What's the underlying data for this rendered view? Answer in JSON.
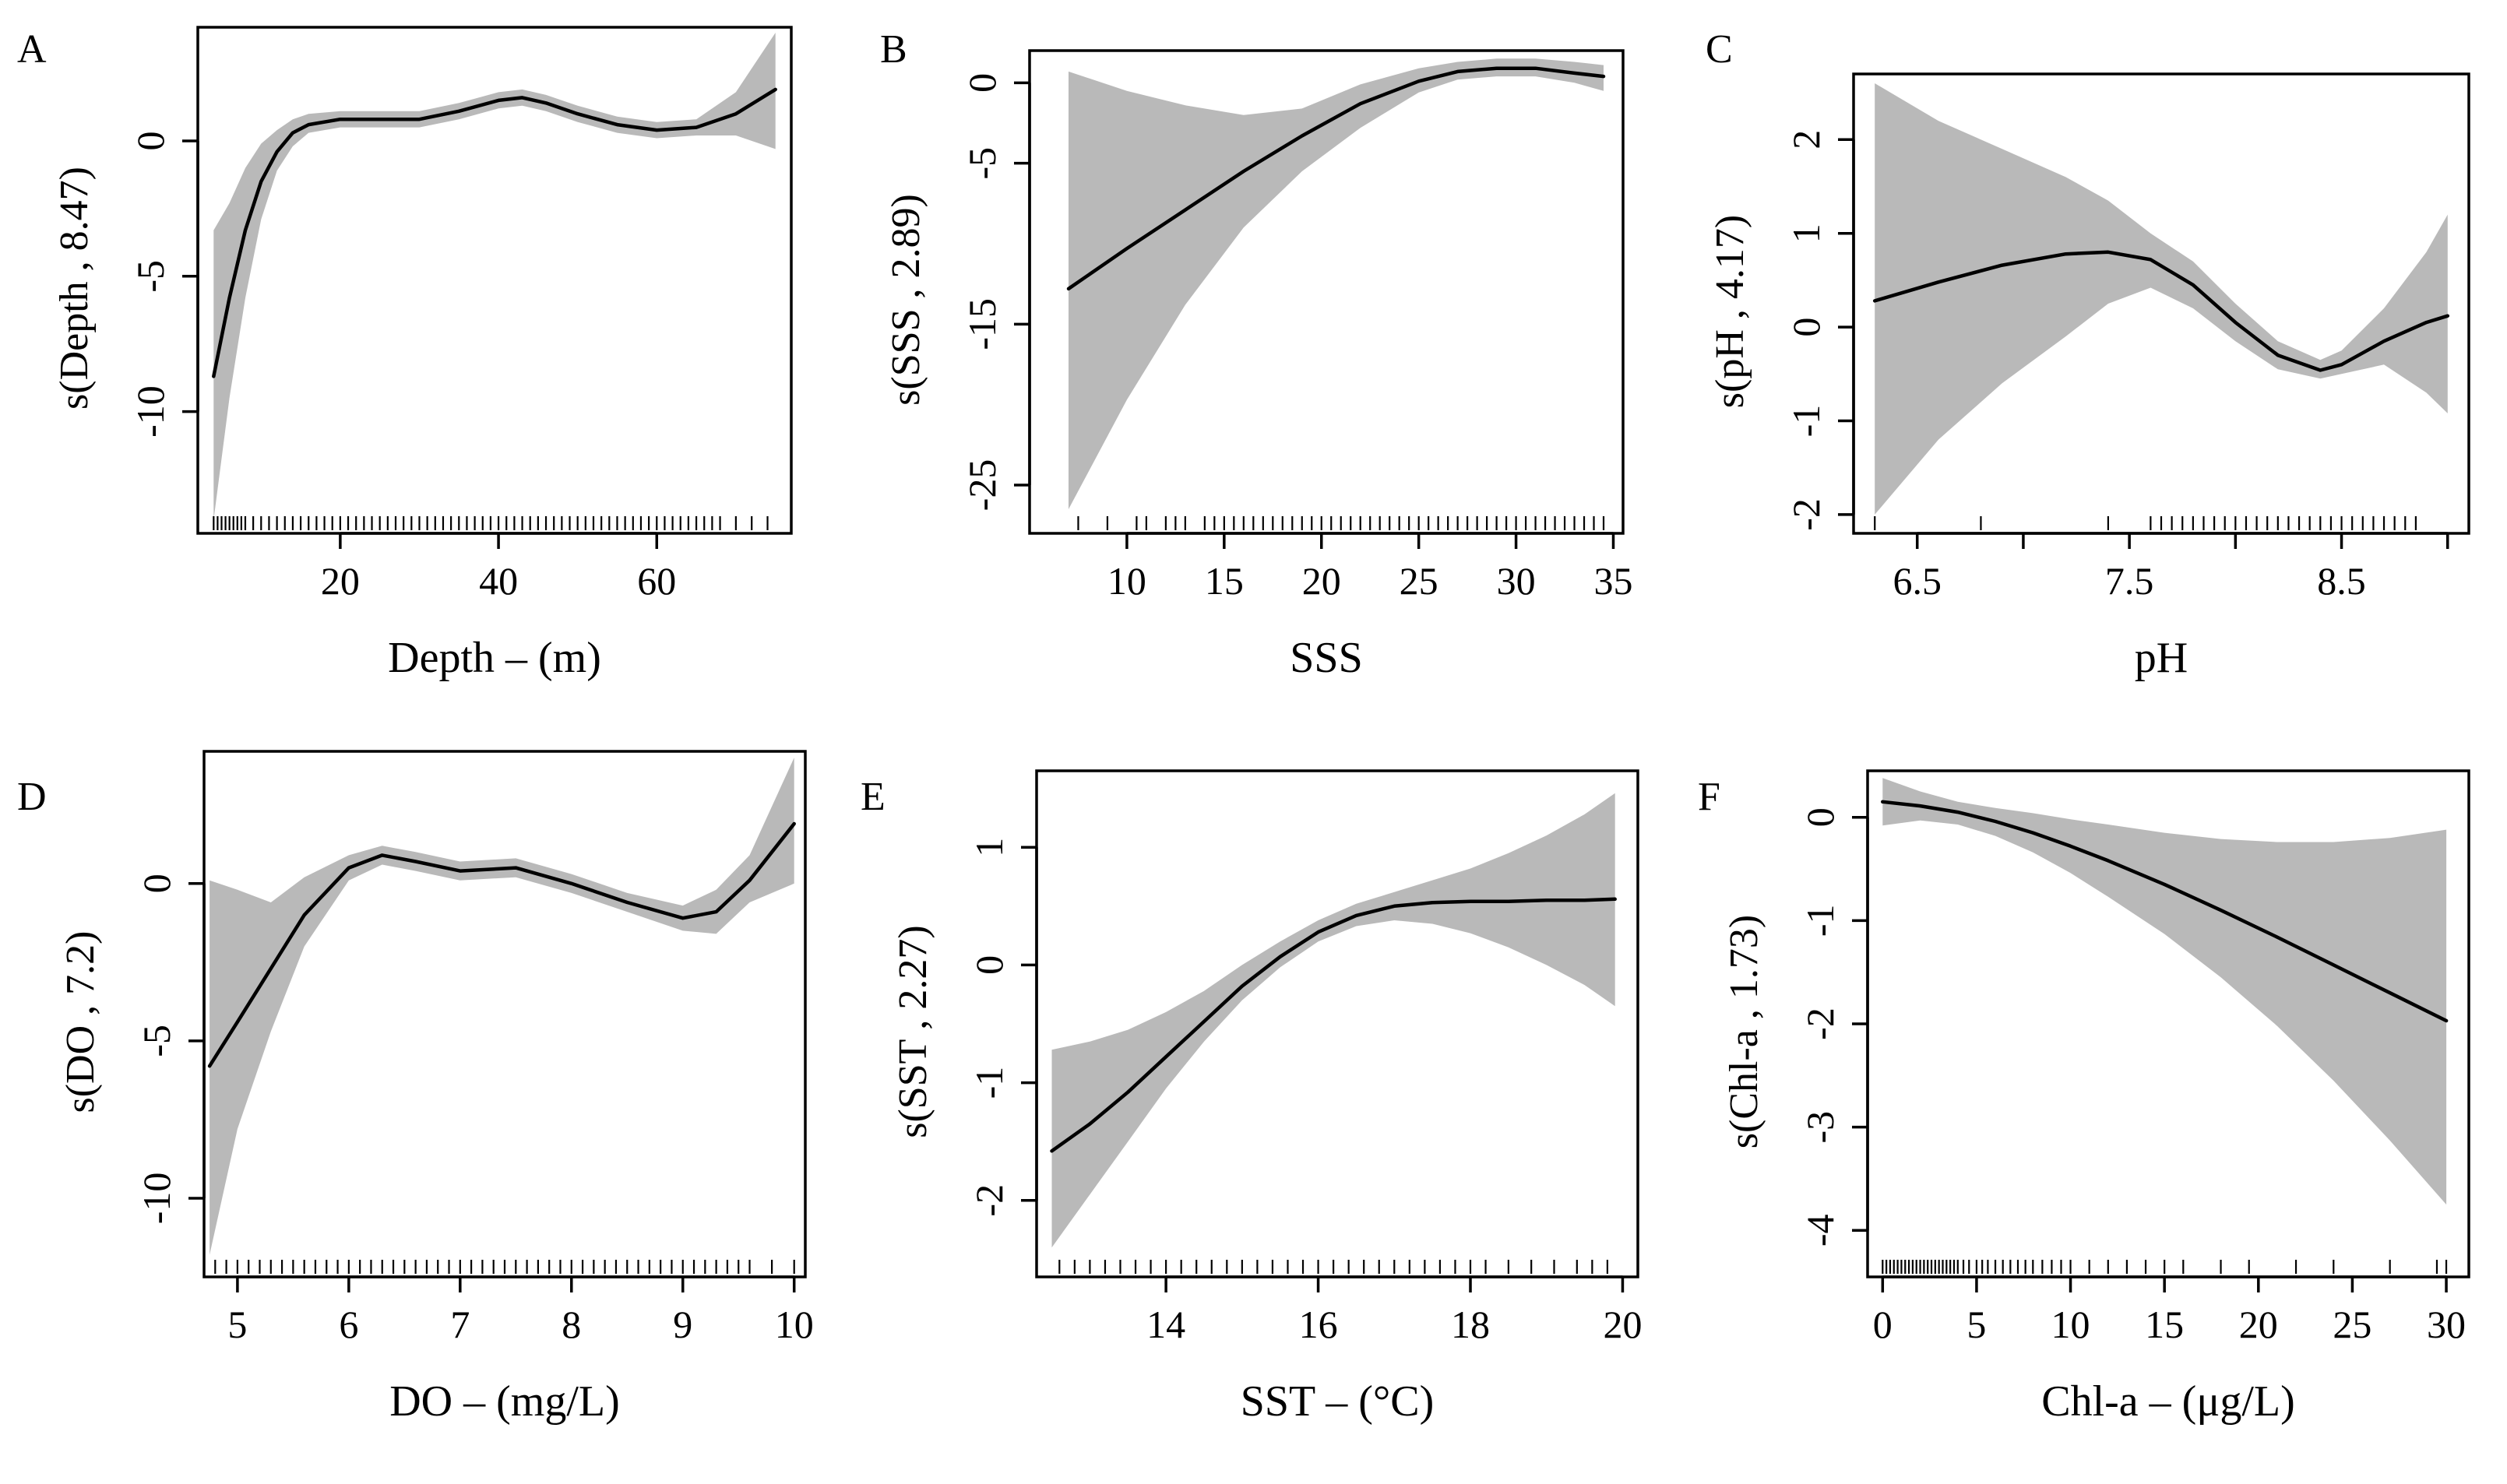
{
  "figure": {
    "colors": {
      "band": "#b9b9b9",
      "line": "#000000",
      "axis": "#000000"
    }
  },
  "chart_data": [
    {
      "id": "A",
      "type": "line",
      "panel_label": "A",
      "xlabel": "Depth – (m)",
      "ylabel": "s(Depth , 8.47)",
      "xlim": [
        2,
        77
      ],
      "ylim": [
        -14.5,
        4.2
      ],
      "xticks": [
        20,
        40,
        60
      ],
      "xtick_labels": [
        "20",
        "40",
        "60"
      ],
      "yticks": [
        -10,
        -5,
        0
      ],
      "ytick_labels": [
        "-10",
        "-5",
        "0"
      ],
      "series": [
        {
          "name": "smooth",
          "x": [
            4,
            6,
            8,
            10,
            12,
            14,
            16,
            20,
            25,
            30,
            35,
            40,
            43,
            46,
            50,
            55,
            60,
            65,
            70,
            75
          ],
          "y": [
            -8.7,
            -5.8,
            -3.3,
            -1.5,
            -0.4,
            0.3,
            0.6,
            0.8,
            0.8,
            0.8,
            1.1,
            1.5,
            1.6,
            1.4,
            1.0,
            0.6,
            0.4,
            0.5,
            1.0,
            1.9
          ],
          "lower": [
            -14,
            -9.5,
            -5.8,
            -2.9,
            -1.1,
            -0.2,
            0.3,
            0.5,
            0.5,
            0.5,
            0.8,
            1.2,
            1.3,
            1.1,
            0.7,
            0.3,
            0.1,
            0.2,
            0.2,
            -0.3
          ],
          "upper": [
            -3.3,
            -2.3,
            -1.0,
            -0.1,
            0.4,
            0.8,
            1.0,
            1.1,
            1.1,
            1.1,
            1.4,
            1.8,
            1.9,
            1.7,
            1.3,
            0.9,
            0.7,
            0.8,
            1.8,
            4.0
          ]
        }
      ],
      "rug": [
        4,
        4.5,
        5,
        5.5,
        6,
        6.5,
        7,
        7.5,
        8,
        9,
        10,
        11,
        12,
        13,
        14,
        15,
        16,
        17,
        18,
        19,
        20,
        21,
        22,
        23,
        24,
        25,
        26,
        27,
        28,
        29,
        30,
        31,
        32,
        33,
        34,
        35,
        36,
        37,
        38,
        39,
        40,
        41,
        42,
        43,
        44,
        45,
        46,
        47,
        48,
        49,
        50,
        51,
        52,
        53,
        54,
        55,
        56,
        57,
        58,
        59,
        60,
        61,
        62,
        63,
        64,
        65,
        66,
        67,
        68,
        70,
        72,
        74
      ]
    },
    {
      "id": "B",
      "type": "line",
      "panel_label": "B",
      "xlabel": "SSS",
      "ylabel": "s(SSS , 2.89)",
      "xlim": [
        5,
        35.5
      ],
      "ylim": [
        -28,
        2
      ],
      "xticks": [
        10,
        15,
        20,
        25,
        30,
        35
      ],
      "xtick_labels": [
        "10",
        "15",
        "20",
        "25",
        "30",
        "35"
      ],
      "yticks": [
        -25,
        -15,
        -5,
        0
      ],
      "ytick_labels": [
        "-25",
        "-15",
        "-5",
        "0"
      ],
      "series": [
        {
          "name": "smooth",
          "x": [
            7,
            10,
            13,
            16,
            19,
            22,
            25,
            27,
            29,
            31,
            33,
            34.5
          ],
          "y": [
            -12.8,
            -10.3,
            -7.9,
            -5.5,
            -3.3,
            -1.3,
            0.1,
            0.7,
            0.9,
            0.9,
            0.6,
            0.4
          ],
          "lower": [
            -26.5,
            -19.7,
            -13.8,
            -9.0,
            -5.5,
            -2.8,
            -0.6,
            0.2,
            0.4,
            0.4,
            0.0,
            -0.5
          ],
          "upper": [
            0.7,
            -0.5,
            -1.4,
            -2.0,
            -1.6,
            -0.1,
            0.9,
            1.3,
            1.5,
            1.5,
            1.3,
            1.1
          ]
        }
      ],
      "rug": [
        7.5,
        9,
        10.5,
        11,
        12,
        12.5,
        13,
        14,
        14.5,
        15,
        15.5,
        16,
        16.5,
        17,
        17.5,
        18,
        18.5,
        19,
        19.5,
        20,
        20.5,
        21,
        21.5,
        22,
        22.5,
        23,
        23.5,
        24,
        24.5,
        25,
        25.5,
        26,
        26.5,
        27,
        27.5,
        28,
        28.5,
        29,
        29.5,
        30,
        30.5,
        31,
        31.5,
        32,
        32.5,
        33,
        33.5,
        34,
        34.5
      ]
    },
    {
      "id": "C",
      "type": "line",
      "panel_label": "C",
      "xlabel": "pH",
      "ylabel": "s(pH , 4.17)",
      "xlim": [
        6.2,
        9.1
      ],
      "ylim": [
        -2.2,
        2.7
      ],
      "xticks": [
        6.5,
        7,
        7.5,
        8,
        8.5,
        9
      ],
      "xtick_labels": [
        "6.5",
        "",
        "7.5",
        "",
        "8.5",
        ""
      ],
      "yticks": [
        -2,
        -1,
        0,
        1,
        2
      ],
      "ytick_labels": [
        "-2",
        "-1",
        "0",
        "1",
        "2"
      ],
      "series": [
        {
          "name": "smooth",
          "x": [
            6.3,
            6.6,
            6.9,
            7.2,
            7.4,
            7.6,
            7.8,
            8.0,
            8.2,
            8.4,
            8.5,
            8.7,
            8.9,
            9.0
          ],
          "y": [
            0.28,
            0.48,
            0.66,
            0.78,
            0.8,
            0.72,
            0.45,
            0.05,
            -0.3,
            -0.46,
            -0.4,
            -0.15,
            0.05,
            0.12
          ],
          "lower": [
            -2.0,
            -1.2,
            -0.6,
            -0.1,
            0.25,
            0.42,
            0.2,
            -0.15,
            -0.45,
            -0.55,
            -0.5,
            -0.4,
            -0.7,
            -0.92
          ],
          "upper": [
            2.6,
            2.2,
            1.9,
            1.6,
            1.35,
            1.0,
            0.7,
            0.25,
            -0.15,
            -0.35,
            -0.25,
            0.2,
            0.8,
            1.2
          ]
        }
      ],
      "rug": [
        6.3,
        6.8,
        7.4,
        7.6,
        7.65,
        7.7,
        7.75,
        7.8,
        7.85,
        7.9,
        7.95,
        8.0,
        8.05,
        8.1,
        8.15,
        8.2,
        8.25,
        8.3,
        8.35,
        8.4,
        8.45,
        8.5,
        8.55,
        8.6,
        8.65,
        8.7,
        8.75,
        8.8,
        8.85
      ]
    },
    {
      "id": "D",
      "type": "line",
      "panel_label": "D",
      "xlabel": "DO – (mg/L)",
      "ylabel": "s(DO , 7.2)",
      "xlim": [
        4.7,
        10.1
      ],
      "ylim": [
        -12.5,
        4.2
      ],
      "xticks": [
        5,
        6,
        7,
        8,
        9,
        10
      ],
      "xtick_labels": [
        "5",
        "6",
        "7",
        "8",
        "9",
        "10"
      ],
      "yticks": [
        -10,
        -5,
        0
      ],
      "ytick_labels": [
        "-10",
        "-5",
        "0"
      ],
      "series": [
        {
          "name": "smooth",
          "x": [
            4.75,
            5.0,
            5.3,
            5.6,
            6.0,
            6.3,
            6.6,
            7.0,
            7.5,
            8.0,
            8.5,
            9.0,
            9.3,
            9.6,
            10.0
          ],
          "y": [
            -5.8,
            -4.4,
            -2.7,
            -1.0,
            0.5,
            0.9,
            0.7,
            0.4,
            0.5,
            0.0,
            -0.6,
            -1.1,
            -0.9,
            0.1,
            1.9
          ],
          "lower": [
            -11.8,
            -7.8,
            -4.7,
            -2.0,
            0.1,
            0.6,
            0.4,
            0.1,
            0.2,
            -0.3,
            -0.9,
            -1.5,
            -1.6,
            -0.6,
            0.0
          ],
          "upper": [
            0.1,
            -0.2,
            -0.6,
            0.2,
            0.9,
            1.2,
            1.0,
            0.7,
            0.8,
            0.3,
            -0.3,
            -0.7,
            -0.2,
            0.9,
            4.0
          ]
        }
      ],
      "rug": [
        4.8,
        4.9,
        5.0,
        5.1,
        5.2,
        5.3,
        5.4,
        5.5,
        5.6,
        5.7,
        5.8,
        5.9,
        6.0,
        6.1,
        6.2,
        6.3,
        6.4,
        6.5,
        6.6,
        6.7,
        6.8,
        6.9,
        7.0,
        7.1,
        7.2,
        7.3,
        7.4,
        7.5,
        7.6,
        7.7,
        7.8,
        7.9,
        8.0,
        8.1,
        8.2,
        8.3,
        8.4,
        8.5,
        8.6,
        8.7,
        8.8,
        8.9,
        9.0,
        9.1,
        9.2,
        9.3,
        9.4,
        9.5,
        9.6,
        9.8,
        10.0
      ]
    },
    {
      "id": "E",
      "type": "line",
      "panel_label": "E",
      "xlabel": "SST – (°C)",
      "ylabel": "s(SST , 2.27)",
      "xlim": [
        12.3,
        20.2
      ],
      "ylim": [
        -2.65,
        1.65
      ],
      "xticks": [
        14,
        16,
        18,
        20
      ],
      "xtick_labels": [
        "14",
        "16",
        "18",
        "20"
      ],
      "yticks": [
        -2,
        -1,
        0,
        1
      ],
      "ytick_labels": [
        "-2",
        "-1",
        "0",
        "1"
      ],
      "series": [
        {
          "name": "smooth",
          "x": [
            12.5,
            13.0,
            13.5,
            14.0,
            14.5,
            15.0,
            15.5,
            16.0,
            16.5,
            17.0,
            17.5,
            18.0,
            18.5,
            19.0,
            19.5,
            19.9
          ],
          "y": [
            -1.58,
            -1.35,
            -1.08,
            -0.78,
            -0.48,
            -0.18,
            0.07,
            0.28,
            0.42,
            0.5,
            0.53,
            0.54,
            0.54,
            0.55,
            0.55,
            0.56
          ],
          "lower": [
            -2.4,
            -1.95,
            -1.5,
            -1.05,
            -0.65,
            -0.3,
            -0.02,
            0.2,
            0.33,
            0.38,
            0.35,
            0.27,
            0.15,
            0.0,
            -0.17,
            -0.35
          ],
          "upper": [
            -0.72,
            -0.65,
            -0.55,
            -0.4,
            -0.22,
            0.0,
            0.2,
            0.38,
            0.52,
            0.62,
            0.72,
            0.82,
            0.95,
            1.1,
            1.28,
            1.46
          ]
        }
      ],
      "rug": [
        12.6,
        12.8,
        13.0,
        13.2,
        13.4,
        13.6,
        13.8,
        14.0,
        14.2,
        14.4,
        14.6,
        14.8,
        15.0,
        15.2,
        15.4,
        15.6,
        15.8,
        16.0,
        16.2,
        16.4,
        16.6,
        16.8,
        17.0,
        17.2,
        17.4,
        17.6,
        17.8,
        18.0,
        18.2,
        18.5,
        18.8,
        19.1,
        19.4,
        19.6,
        19.8
      ]
    },
    {
      "id": "F",
      "type": "line",
      "panel_label": "F",
      "xlabel": "Chl-a – (μg/L)",
      "ylabel": "s(Chl-a , 1.73)",
      "xlim": [
        -0.8,
        31.2
      ],
      "ylim": [
        -4.45,
        0.45
      ],
      "xticks": [
        0,
        5,
        10,
        15,
        20,
        25,
        30
      ],
      "xtick_labels": [
        "0",
        "5",
        "10",
        "15",
        "20",
        "25",
        "30"
      ],
      "yticks": [
        -4,
        -3,
        -2,
        -1,
        0
      ],
      "ytick_labels": [
        "-4",
        "-3",
        "-2",
        "-1",
        "0"
      ],
      "series": [
        {
          "name": "smooth",
          "x": [
            0,
            2,
            4,
            6,
            8,
            10,
            12,
            15,
            18,
            21,
            24,
            27,
            30
          ],
          "y": [
            0.15,
            0.11,
            0.05,
            -0.04,
            -0.15,
            -0.28,
            -0.42,
            -0.65,
            -0.9,
            -1.16,
            -1.43,
            -1.7,
            -1.97
          ],
          "lower": [
            -0.08,
            -0.03,
            -0.07,
            -0.18,
            -0.34,
            -0.54,
            -0.77,
            -1.13,
            -1.55,
            -2.02,
            -2.55,
            -3.13,
            -3.75
          ],
          "upper": [
            0.38,
            0.25,
            0.15,
            0.09,
            0.04,
            -0.02,
            -0.07,
            -0.15,
            -0.21,
            -0.24,
            -0.24,
            -0.2,
            -0.12
          ]
        }
      ],
      "rug": [
        0,
        0.2,
        0.4,
        0.6,
        0.8,
        1,
        1.2,
        1.4,
        1.6,
        1.8,
        2,
        2.2,
        2.4,
        2.6,
        2.8,
        3,
        3.2,
        3.4,
        3.6,
        3.8,
        4,
        4.3,
        4.6,
        5,
        5.3,
        5.6,
        6,
        6.4,
        6.8,
        7.2,
        7.6,
        8,
        8.5,
        9,
        9.5,
        10,
        11,
        12,
        13,
        14,
        15,
        16,
        18,
        19.5,
        22,
        24,
        27,
        29.5,
        30
      ]
    }
  ]
}
